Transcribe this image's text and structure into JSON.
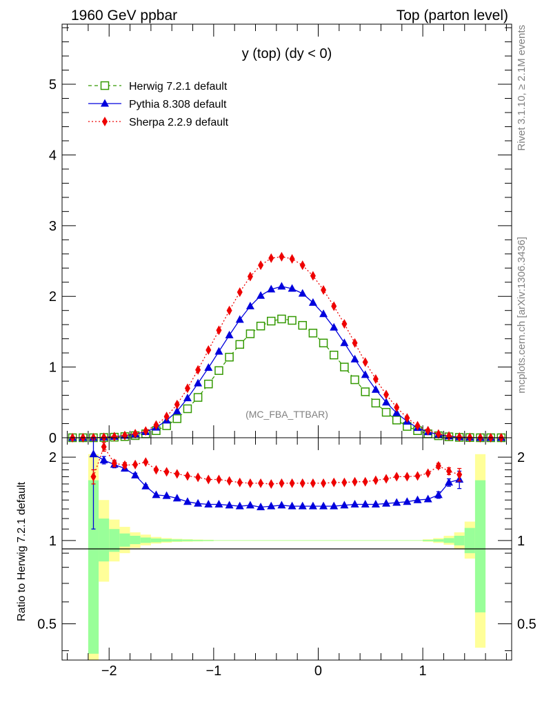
{
  "header": {
    "left": "1960 GeV ppbar",
    "right": "Top (parton level)"
  },
  "side_text": {
    "rivet": "Rivet 3.1.10, ≥ 2.1M events",
    "source": "mcplots.cern.ch [arXiv:1306.3436]"
  },
  "chart_data": [
    {
      "type": "line",
      "title": "y (top) (dy < 0)",
      "watermark": "(MC_FBA_TTBAR)",
      "xlabel": "",
      "ylabel": "",
      "xlim": [
        -2.45,
        1.85
      ],
      "ylim": [
        0,
        5.85
      ],
      "grid": false,
      "legend_position": "top-left",
      "x_ticks": [
        {
          "value": -2,
          "label": "−2"
        },
        {
          "value": -1,
          "label": "−1"
        },
        {
          "value": 0,
          "label": "0"
        },
        {
          "value": 1,
          "label": "1"
        }
      ],
      "y_ticks": [
        {
          "value": 0,
          "label": "0"
        },
        {
          "value": 1,
          "label": "1"
        },
        {
          "value": 2,
          "label": "2"
        },
        {
          "value": 3,
          "label": "3"
        },
        {
          "value": 4,
          "label": "4"
        },
        {
          "value": 5,
          "label": "5"
        }
      ],
      "x": [
        -2.35,
        -2.25,
        -2.15,
        -2.05,
        -1.95,
        -1.85,
        -1.75,
        -1.65,
        -1.55,
        -1.45,
        -1.35,
        -1.25,
        -1.15,
        -1.05,
        -0.95,
        -0.85,
        -0.75,
        -0.65,
        -0.55,
        -0.45,
        -0.35,
        -0.25,
        -0.15,
        -0.05,
        0.05,
        0.15,
        0.25,
        0.35,
        0.45,
        0.55,
        0.65,
        0.75,
        0.85,
        0.95,
        1.05,
        1.15,
        1.25,
        1.35,
        1.45,
        1.55,
        1.65,
        1.75
      ],
      "series": [
        {
          "name": "Herwig 7.2.1 default",
          "color": "#339900",
          "marker": "open-square",
          "line_style": "dashed",
          "values": [
            0,
            0,
            0,
            0.003,
            0.008,
            0.016,
            0.03,
            0.055,
            0.1,
            0.17,
            0.27,
            0.41,
            0.57,
            0.76,
            0.95,
            1.14,
            1.32,
            1.47,
            1.58,
            1.65,
            1.68,
            1.66,
            1.59,
            1.48,
            1.34,
            1.17,
            1.0,
            0.82,
            0.65,
            0.49,
            0.36,
            0.25,
            0.16,
            0.1,
            0.055,
            0.028,
            0.013,
            0.005,
            0.002,
            0,
            0,
            0
          ]
        },
        {
          "name": "Pythia 8.308 default",
          "color": "#0000dd",
          "marker": "filled-triangle",
          "line_style": "solid",
          "values": [
            0,
            0,
            0,
            0.006,
            0.015,
            0.03,
            0.052,
            0.083,
            0.145,
            0.245,
            0.375,
            0.56,
            0.77,
            0.99,
            1.22,
            1.45,
            1.67,
            1.86,
            2.01,
            2.1,
            2.14,
            2.11,
            2.04,
            1.91,
            1.75,
            1.56,
            1.34,
            1.11,
            0.89,
            0.68,
            0.5,
            0.35,
            0.23,
            0.14,
            0.08,
            0.045,
            0.021,
            0.009,
            0.0035,
            0,
            0,
            0
          ]
        },
        {
          "name": "Sherpa 2.2.9 default",
          "color": "#ee0000",
          "marker": "filled-diamond",
          "line_style": "dotted",
          "values": [
            0,
            0,
            0,
            0.006,
            0.016,
            0.032,
            0.057,
            0.095,
            0.18,
            0.3,
            0.47,
            0.7,
            0.96,
            1.24,
            1.52,
            1.8,
            2.06,
            2.28,
            2.44,
            2.54,
            2.56,
            2.53,
            2.44,
            2.29,
            2.09,
            1.86,
            1.61,
            1.34,
            1.07,
            0.83,
            0.61,
            0.43,
            0.28,
            0.17,
            0.1,
            0.053,
            0.025,
            0.01,
            0.004,
            0,
            0,
            0
          ]
        }
      ]
    },
    {
      "type": "line",
      "title": "",
      "xlabel": "",
      "ylabel": "Ratio to Herwig 7.2.1 default",
      "xlim": [
        -2.45,
        1.85
      ],
      "ylim": [
        0.37,
        2.35
      ],
      "y_scale": "log",
      "reference_line": 1,
      "x_ticks": [
        {
          "value": -2,
          "label": "−2"
        },
        {
          "value": -1,
          "label": "−1"
        },
        {
          "value": 0,
          "label": "0"
        },
        {
          "value": 1,
          "label": "1"
        }
      ],
      "y_ticks": [
        {
          "value": 0.5,
          "label": "0.5"
        },
        {
          "value": 1,
          "label": "1"
        },
        {
          "value": 2,
          "label": "2"
        }
      ],
      "uncertainty_bands": {
        "colors": {
          "inner": "#99ff99",
          "outer": "#ffff99"
        },
        "x_edges": [
          -2.2,
          -2.1,
          -2.0,
          -1.9,
          -1.8,
          -1.7,
          -1.6,
          -1.5,
          -1.4,
          -1.3,
          -1.2,
          -1.1,
          -1.0,
          1.0,
          1.1,
          1.2,
          1.3,
          1.4,
          1.5,
          1.6
        ],
        "inner": [
          [
            0.39,
            1.65
          ],
          [
            0.84,
            1.2
          ],
          [
            0.91,
            1.1
          ],
          [
            0.95,
            1.06
          ],
          [
            0.97,
            1.04
          ],
          [
            0.98,
            1.025
          ],
          [
            0.985,
            1.017
          ],
          [
            0.99,
            1.012
          ],
          [
            0.992,
            1.009
          ],
          [
            0.994,
            1.007
          ],
          [
            0.995,
            1.005
          ],
          [
            0.996,
            1.004
          ],
          [
            0.998,
            1.002
          ],
          [
            0.995,
            1.005
          ],
          [
            0.99,
            1.01
          ],
          [
            0.98,
            1.02
          ],
          [
            0.96,
            1.04
          ],
          [
            0.9,
            1.11
          ],
          [
            0.55,
            1.65
          ]
        ],
        "outer": [
          [
            0.37,
            2.05
          ],
          [
            0.71,
            1.4
          ],
          [
            0.84,
            1.19
          ],
          [
            0.9,
            1.12
          ],
          [
            0.94,
            1.07
          ],
          [
            0.96,
            1.05
          ],
          [
            0.975,
            1.03
          ],
          [
            0.982,
            1.02
          ],
          [
            0.988,
            1.014
          ],
          [
            0.99,
            1.011
          ],
          [
            0.992,
            1.008
          ],
          [
            0.994,
            1.006
          ],
          [
            0.997,
            1.003
          ],
          [
            0.99,
            1.01
          ],
          [
            0.98,
            1.02
          ],
          [
            0.965,
            1.04
          ],
          [
            0.93,
            1.07
          ],
          [
            0.86,
            1.17
          ],
          [
            0.41,
            2.05
          ]
        ]
      },
      "x": [
        -2.15,
        -2.05,
        -1.95,
        -1.85,
        -1.75,
        -1.65,
        -1.55,
        -1.45,
        -1.35,
        -1.25,
        -1.15,
        -1.05,
        -0.95,
        -0.85,
        -0.75,
        -0.65,
        -0.55,
        -0.45,
        -0.35,
        -0.25,
        -0.15,
        -0.05,
        0.05,
        0.15,
        0.25,
        0.35,
        0.45,
        0.55,
        0.65,
        0.75,
        0.85,
        0.95,
        1.05,
        1.15,
        1.25,
        1.35
      ],
      "series": [
        {
          "name": "Pythia 8.308 default",
          "color": "#0000dd",
          "marker": "filled-triangle",
          "line_style": "solid",
          "values": [
            2.05,
            1.95,
            1.88,
            1.82,
            1.72,
            1.57,
            1.46,
            1.45,
            1.42,
            1.38,
            1.36,
            1.35,
            1.35,
            1.34,
            1.33,
            1.34,
            1.32,
            1.33,
            1.34,
            1.33,
            1.33,
            1.33,
            1.33,
            1.33,
            1.34,
            1.35,
            1.35,
            1.35,
            1.36,
            1.37,
            1.38,
            1.4,
            1.41,
            1.46,
            1.62,
            1.66
          ],
          "errors": [
            0.95,
            0.06,
            0.05,
            0.04,
            0.03,
            0.02,
            0,
            0,
            0,
            0,
            0,
            0,
            0,
            0,
            0,
            0,
            0,
            0,
            0,
            0,
            0,
            0,
            0,
            0,
            0,
            0,
            0,
            0,
            0,
            0,
            0,
            0,
            0,
            0.04,
            0.05,
            0.12
          ]
        },
        {
          "name": "Sherpa 2.2.9 default",
          "color": "#ee0000",
          "marker": "filled-diamond",
          "line_style": "dotted",
          "values": [
            1.7,
            2.18,
            1.9,
            1.87,
            1.88,
            1.92,
            1.8,
            1.77,
            1.74,
            1.71,
            1.69,
            1.66,
            1.66,
            1.64,
            1.62,
            1.61,
            1.61,
            1.6,
            1.61,
            1.61,
            1.61,
            1.61,
            1.61,
            1.62,
            1.62,
            1.63,
            1.63,
            1.65,
            1.67,
            1.7,
            1.7,
            1.71,
            1.75,
            1.86,
            1.78,
            1.73
          ],
          "errors": [
            0.1,
            0.08,
            0.05,
            0.04,
            0,
            0,
            0,
            0,
            0,
            0,
            0,
            0,
            0,
            0,
            0,
            0,
            0,
            0,
            0,
            0,
            0,
            0,
            0,
            0,
            0,
            0,
            0,
            0,
            0,
            0,
            0,
            0,
            0,
            0.04,
            0.05,
            0.09
          ]
        }
      ]
    }
  ]
}
